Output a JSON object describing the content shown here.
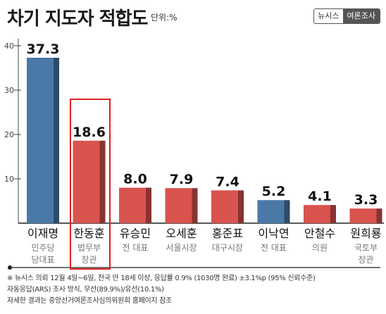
{
  "header": {
    "title": "차기 지도자 적합도",
    "unit": "단위:%",
    "brand_left": "뉴시스",
    "brand_right": "여론조사"
  },
  "colors": {
    "highlight_blue": "#4a79a8",
    "red": "#d9534f",
    "highlight_box": "#e02020"
  },
  "chart_data": {
    "type": "bar",
    "categories": [
      "이재명",
      "한동훈",
      "유승민",
      "오세훈",
      "홍준표",
      "이낙연",
      "안철수",
      "원희룡"
    ],
    "subtitles": [
      [
        "민주당",
        "당대표"
      ],
      [
        "법무부",
        "장관"
      ],
      [
        "전 대표"
      ],
      [
        "서울시장"
      ],
      [
        "대구시장"
      ],
      [
        "전 대표"
      ],
      [
        "의원"
      ],
      [
        "국토부",
        "장관"
      ]
    ],
    "values": [
      37.3,
      18.6,
      8.0,
      7.9,
      7.4,
      5.2,
      4.1,
      3.3
    ],
    "value_labels": [
      "37.3",
      "18.6",
      "8.0",
      "7.9",
      "7.4",
      "5.2",
      "4.1",
      "3.3"
    ],
    "bar_colors": [
      "#4a79a8",
      "#d9534f",
      "#d9534f",
      "#d9534f",
      "#d9534f",
      "#4a79a8",
      "#d9534f",
      "#d9534f"
    ],
    "yticks": [
      10,
      20,
      30,
      40
    ],
    "ylim": [
      0,
      40
    ],
    "highlighted_category": "한동훈"
  },
  "footnote": {
    "line1": "※ 뉴시스 의뢰 12월 4일~6일, 전국 만 18세 이상, 응답률 0.9% (1030명 완료) ±3.1%p (95% 신뢰수준)",
    "line2": "자동응답(ARS) 조사 방식, 무선(89.9%)/유선(10.1%)",
    "line3": "자세한 결과는 중앙선거여론조사심의위원회 홈페이지 참조"
  }
}
